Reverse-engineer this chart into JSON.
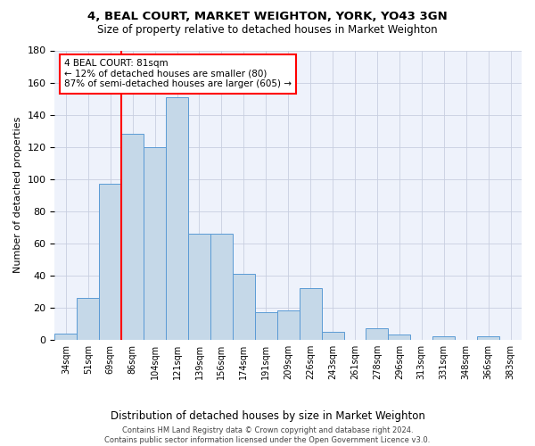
{
  "title_line1": "4, BEAL COURT, MARKET WEIGHTON, YORK, YO43 3GN",
  "title_line2": "Size of property relative to detached houses in Market Weighton",
  "xlabel": "Distribution of detached houses by size in Market Weighton",
  "ylabel": "Number of detached properties",
  "bar_labels": [
    "34sqm",
    "51sqm",
    "69sqm",
    "86sqm",
    "104sqm",
    "121sqm",
    "139sqm",
    "156sqm",
    "174sqm",
    "191sqm",
    "209sqm",
    "226sqm",
    "243sqm",
    "261sqm",
    "278sqm",
    "296sqm",
    "313sqm",
    "331sqm",
    "348sqm",
    "366sqm",
    "383sqm"
  ],
  "bar_heights": [
    4,
    26,
    97,
    128,
    120,
    151,
    66,
    66,
    41,
    17,
    18,
    32,
    5,
    0,
    7,
    3,
    0,
    2,
    0,
    2,
    0
  ],
  "bar_color": "#c5d8e8",
  "bar_edge_color": "#5b9bd5",
  "bar_width": 1.0,
  "vline_x": 2.5,
  "vline_color": "red",
  "annotation_text": "4 BEAL COURT: 81sqm\n← 12% of detached houses are smaller (80)\n87% of semi-detached houses are larger (605) →",
  "annotation_box_color": "white",
  "annotation_box_edge": "red",
  "ylim": [
    0,
    180
  ],
  "yticks": [
    0,
    20,
    40,
    60,
    80,
    100,
    120,
    140,
    160,
    180
  ],
  "footer_line1": "Contains HM Land Registry data © Crown copyright and database right 2024.",
  "footer_line2": "Contains public sector information licensed under the Open Government Licence v3.0.",
  "bg_color": "#eef2fb",
  "grid_color": "#c8cfe0"
}
